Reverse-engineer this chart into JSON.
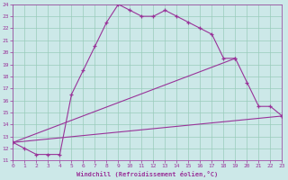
{
  "xlabel": "Windchill (Refroidissement éolien,°C)",
  "background_color": "#cce8e8",
  "grid_color": "#99ccbb",
  "line_color": "#993399",
  "xlim": [
    0,
    23
  ],
  "ylim": [
    11,
    24
  ],
  "xticks": [
    0,
    1,
    2,
    3,
    4,
    5,
    6,
    7,
    8,
    9,
    10,
    11,
    12,
    13,
    14,
    15,
    16,
    17,
    18,
    19,
    20,
    21,
    22,
    23
  ],
  "yticks": [
    11,
    12,
    13,
    14,
    15,
    16,
    17,
    18,
    19,
    20,
    21,
    22,
    23,
    24
  ],
  "line1_x": [
    0,
    1,
    2,
    3,
    4,
    5,
    6,
    7,
    8,
    9,
    10,
    11,
    12,
    13,
    14,
    15,
    16,
    17,
    18,
    19
  ],
  "line1_y": [
    12.5,
    12.0,
    11.5,
    11.5,
    11.5,
    16.5,
    18.5,
    20.5,
    22.5,
    24.0,
    23.5,
    23.0,
    23.0,
    23.5,
    23.0,
    22.5,
    22.0,
    21.5,
    19.5,
    19.5
  ],
  "line2_x": [
    0,
    19,
    20,
    21,
    22,
    23
  ],
  "line2_y": [
    12.5,
    19.5,
    17.5,
    15.5,
    15.5,
    14.7
  ],
  "line3_x": [
    0,
    23
  ],
  "line3_y": [
    12.5,
    14.7
  ]
}
